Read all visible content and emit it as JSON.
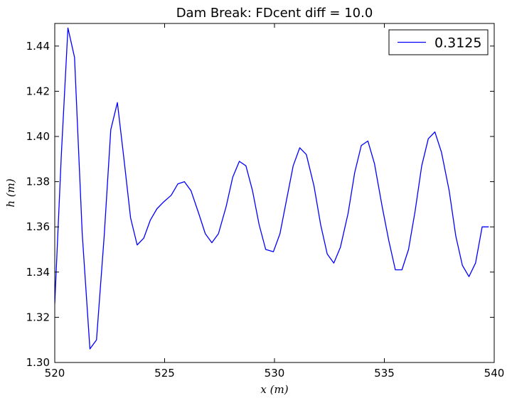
{
  "chart_data": {
    "type": "line",
    "title": "Dam Break: FDcent diff = 10.0",
    "xlabel": "x (m)",
    "ylabel": "h (m)",
    "xlim": [
      520,
      540
    ],
    "ylim": [
      1.3,
      1.45
    ],
    "xticks": [
      520,
      525,
      530,
      535,
      540
    ],
    "xtick_labels": [
      "520",
      "525",
      "530",
      "535",
      "540"
    ],
    "yticks": [
      1.3,
      1.32,
      1.34,
      1.36,
      1.38,
      1.4,
      1.42,
      1.44
    ],
    "ytick_labels": [
      "1.30",
      "1.32",
      "1.34",
      "1.36",
      "1.38",
      "1.40",
      "1.42",
      "1.44"
    ],
    "grid": false,
    "legend_position": "top-right",
    "series": [
      {
        "name": "0.3125",
        "color": "#0000ff",
        "x": [
          520.0,
          520.3,
          520.6,
          520.9,
          521.25,
          521.6,
          521.9,
          522.25,
          522.55,
          522.85,
          523.15,
          523.45,
          523.75,
          524.05,
          524.35,
          524.65,
          524.95,
          525.3,
          525.6,
          525.9,
          526.2,
          526.55,
          526.85,
          527.15,
          527.45,
          527.8,
          528.1,
          528.4,
          528.7,
          529.0,
          529.3,
          529.6,
          529.95,
          530.25,
          530.55,
          530.85,
          531.15,
          531.45,
          531.8,
          532.1,
          532.4,
          532.7,
          533.0,
          533.35,
          533.65,
          533.95,
          534.25,
          534.55,
          534.9,
          535.2,
          535.5,
          535.8,
          536.1,
          536.4,
          536.7,
          537.0,
          537.3,
          537.6,
          537.95,
          538.25,
          538.55,
          538.85,
          539.15,
          539.45,
          539.75
        ],
        "y": [
          1.326,
          1.392,
          1.448,
          1.435,
          1.357,
          1.306,
          1.31,
          1.356,
          1.403,
          1.415,
          1.39,
          1.364,
          1.352,
          1.355,
          1.363,
          1.368,
          1.371,
          1.374,
          1.379,
          1.38,
          1.376,
          1.366,
          1.357,
          1.353,
          1.357,
          1.369,
          1.382,
          1.389,
          1.387,
          1.376,
          1.361,
          1.35,
          1.349,
          1.357,
          1.372,
          1.387,
          1.395,
          1.392,
          1.378,
          1.361,
          1.348,
          1.344,
          1.351,
          1.366,
          1.384,
          1.396,
          1.398,
          1.388,
          1.369,
          1.354,
          1.341,
          1.341,
          1.35,
          1.367,
          1.387,
          1.399,
          1.402,
          1.393,
          1.376,
          1.356,
          1.343,
          1.338,
          1.344,
          1.36,
          1.36
        ]
      }
    ]
  }
}
